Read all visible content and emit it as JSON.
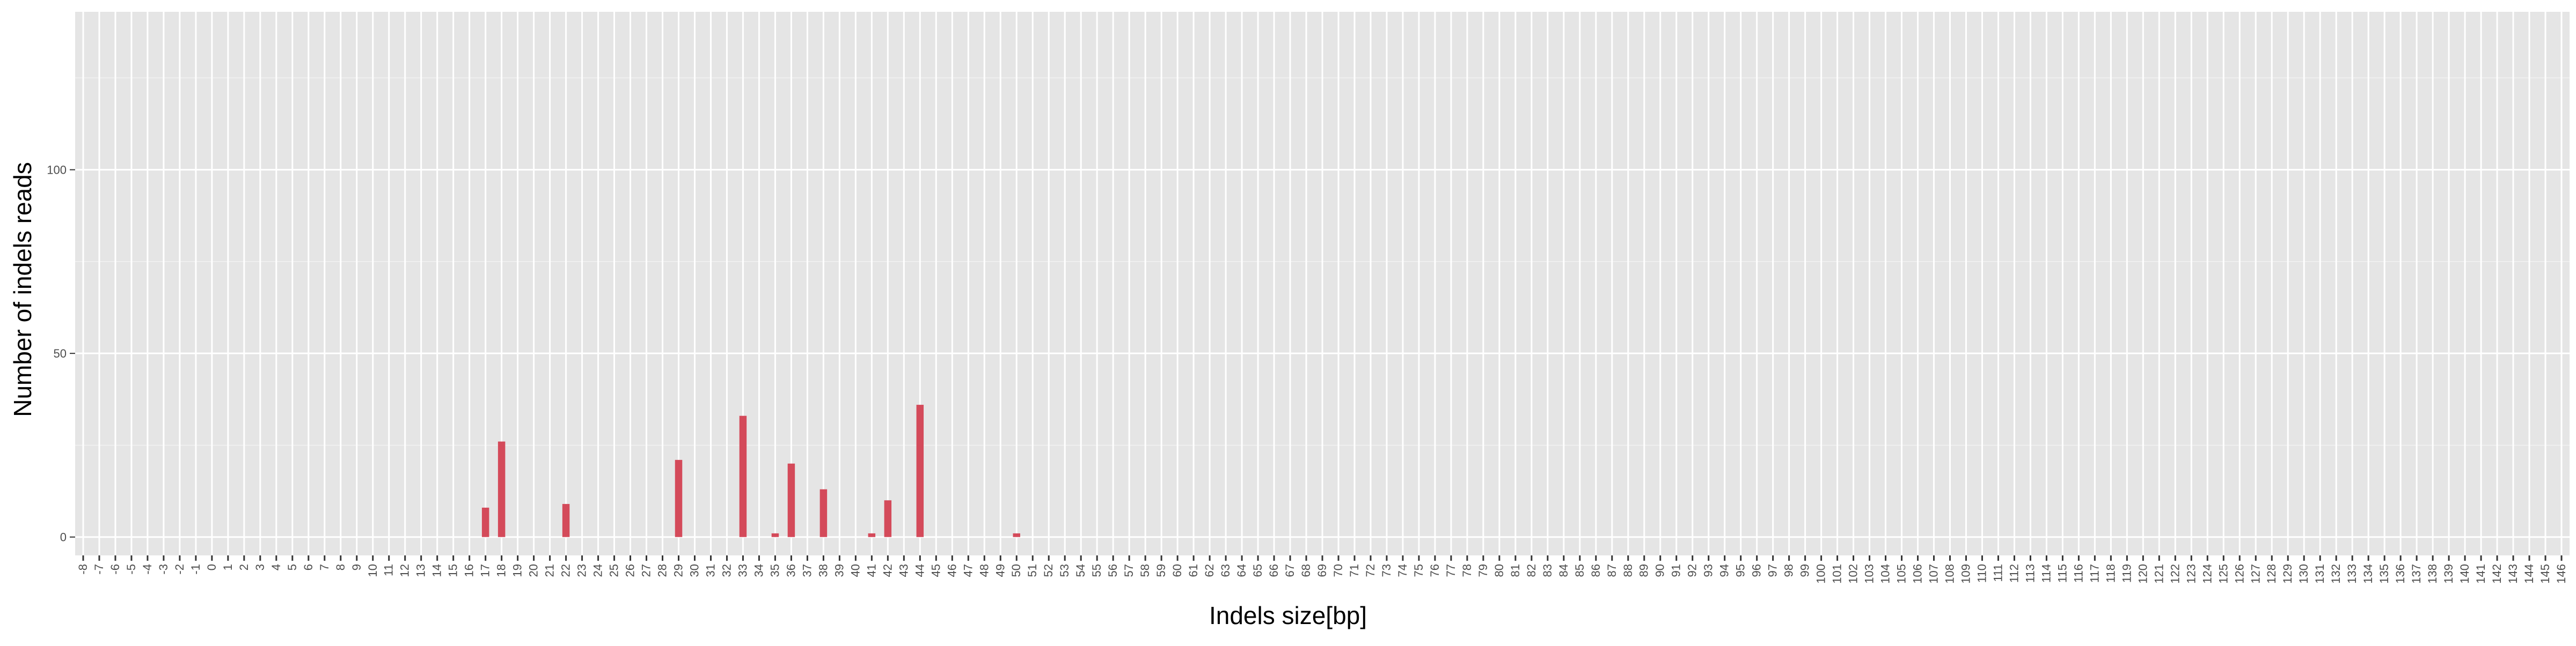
{
  "chart_data": {
    "type": "bar",
    "title": "",
    "xlabel": "Indels size[bp]",
    "ylabel": "Number of indels reads",
    "x_categories": [
      "-8",
      "-7",
      "-6",
      "-5",
      "-4",
      "-3",
      "-2",
      "-1",
      "0",
      "1",
      "2",
      "3",
      "4",
      "5",
      "6",
      "7",
      "8",
      "9",
      "10",
      "11",
      "12",
      "13",
      "14",
      "15",
      "16",
      "17",
      "18",
      "19",
      "20",
      "21",
      "22",
      "23",
      "24",
      "25",
      "26",
      "27",
      "28",
      "29",
      "30",
      "31",
      "32",
      "33",
      "34",
      "35",
      "36",
      "37",
      "38",
      "39",
      "40",
      "41",
      "42",
      "43",
      "44",
      "45",
      "46",
      "47",
      "48",
      "49",
      "50",
      "51",
      "52",
      "53",
      "54",
      "55",
      "56",
      "57",
      "58",
      "59",
      "60",
      "61",
      "62",
      "63",
      "64",
      "65",
      "66",
      "67",
      "68",
      "69",
      "70",
      "71",
      "72",
      "73",
      "74",
      "75",
      "76",
      "77",
      "78",
      "79",
      "80",
      "81",
      "82",
      "83",
      "84",
      "85",
      "86",
      "87",
      "88",
      "89",
      "90",
      "91",
      "92",
      "93",
      "94",
      "95",
      "96",
      "97",
      "98",
      "99",
      "100",
      "101",
      "102",
      "103",
      "104",
      "105",
      "106",
      "107",
      "108",
      "109",
      "110",
      "111",
      "112",
      "113",
      "114",
      "115",
      "116",
      "117",
      "118",
      "119",
      "120",
      "121",
      "122",
      "123",
      "124",
      "125",
      "126",
      "127",
      "128",
      "129",
      "130",
      "131",
      "132",
      "133",
      "134",
      "135",
      "136",
      "137",
      "138",
      "139",
      "140",
      "141",
      "142",
      "143",
      "144",
      "145",
      "146"
    ],
    "y_ticks": [
      0,
      50,
      100
    ],
    "ylim": [
      -5,
      143
    ],
    "grid": true,
    "bar_color": "#d44a5a",
    "panel_color": "#e5e5e5",
    "bars": [
      {
        "x": "17",
        "y": 8
      },
      {
        "x": "18",
        "y": 26
      },
      {
        "x": "22",
        "y": 9
      },
      {
        "x": "29",
        "y": 21
      },
      {
        "x": "33",
        "y": 33
      },
      {
        "x": "35",
        "y": 1
      },
      {
        "x": "36",
        "y": 20
      },
      {
        "x": "38",
        "y": 13
      },
      {
        "x": "41",
        "y": 1
      },
      {
        "x": "42",
        "y": 10
      },
      {
        "x": "44",
        "y": 36
      },
      {
        "x": "50",
        "y": 1
      }
    ]
  }
}
